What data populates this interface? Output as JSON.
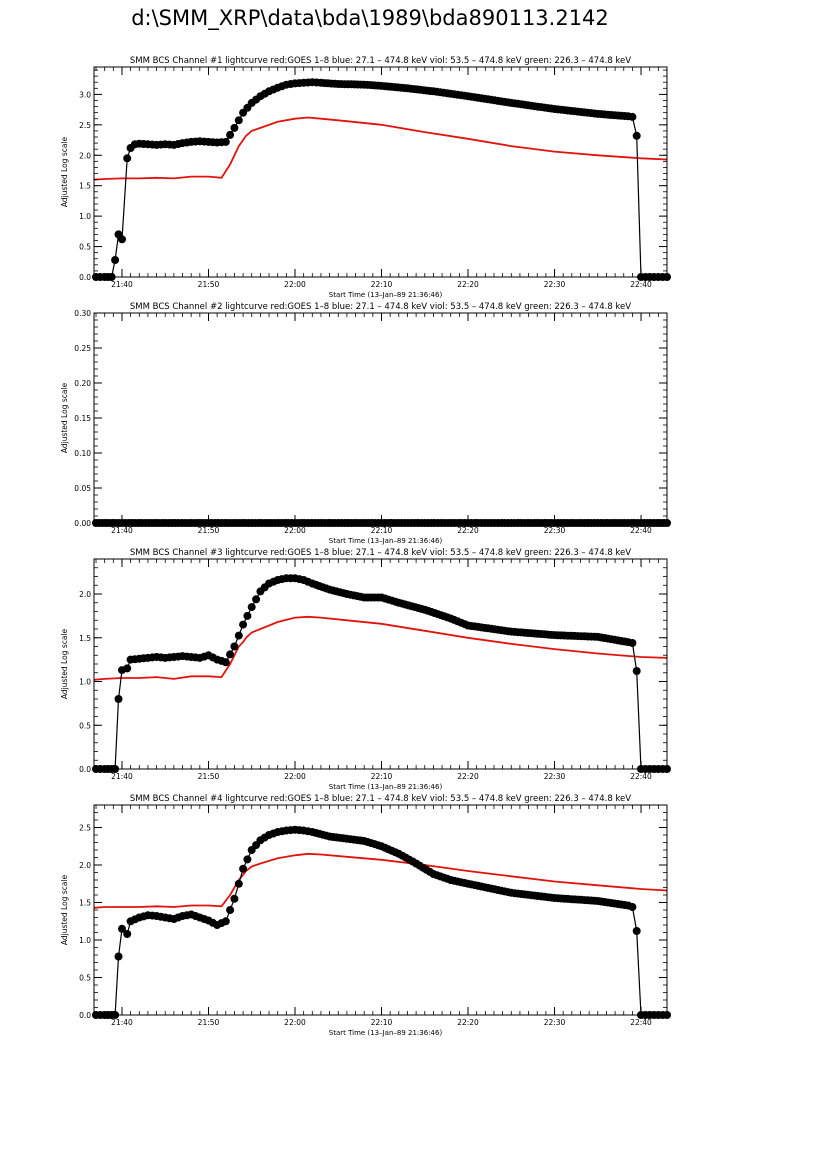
{
  "page": {
    "title": "d:\\SMM_XRP\\data\\bda\\1989\\bda890113.2142"
  },
  "colors": {
    "goes": "#e0140c",
    "bcs": "#000000",
    "axes": "#000000"
  },
  "chart_data": [
    {
      "type": "line",
      "title": "SMM BCS Channel #1 lightcurve  red:GOES 1–8  blue: 27.1 – 474.8 keV  viol: 53.5 – 474.8 keV  green: 226.3 – 474.8 keV",
      "xlabel": "Start Time (13–Jan–89 21:36:46)",
      "ylabel": "Adjusted Log scale",
      "xlim": [
        "21:36:46",
        "22:43:00"
      ],
      "ylim": [
        0,
        3.45
      ],
      "x_ticks": [
        "21:40",
        "21:50",
        "22:00",
        "22:10",
        "22:20",
        "22:30",
        "22:40"
      ],
      "y_ticks": [
        "0.0",
        "0.5",
        "1.0",
        "1.5",
        "2.0",
        "2.5",
        "3.0"
      ],
      "y_tick_values": [
        0,
        0.5,
        1.0,
        1.5,
        2.0,
        2.5,
        3.0
      ],
      "series": [
        {
          "kind": "bcs",
          "x": [
            "21:37:00",
            "21:38:00",
            "21:38:48",
            "21:39:12",
            "21:39:36",
            "21:40:00",
            "21:40:36",
            "21:41:00",
            "21:41:30",
            "21:42:00",
            "21:43:00",
            "21:44:00",
            "21:45:00",
            "21:46:00",
            "21:47:00",
            "21:48:00",
            "21:49:00",
            "21:50:00",
            "21:51:00",
            "21:52:00",
            "21:53:00",
            "21:54:00",
            "21:55:00",
            "21:56:00",
            "21:57:00",
            "21:58:00",
            "21:59:00",
            "22:00:00",
            "22:01:00",
            "22:02:00",
            "22:03:00",
            "22:05:00",
            "22:08:00",
            "22:10:00",
            "22:13:00",
            "22:16:00",
            "22:20:00",
            "22:25:00",
            "22:30:00",
            "22:35:00",
            "22:38:30",
            "22:39:00",
            "22:39:30",
            "22:40:00",
            "22:41:00",
            "22:42:00",
            "22:43:00"
          ],
          "y": [
            0.0,
            0.0,
            0.0,
            0.28,
            0.7,
            0.62,
            1.95,
            2.12,
            2.18,
            2.19,
            2.18,
            2.17,
            2.18,
            2.17,
            2.2,
            2.22,
            2.23,
            2.22,
            2.21,
            2.22,
            2.45,
            2.7,
            2.86,
            2.97,
            3.05,
            3.11,
            3.16,
            3.18,
            3.19,
            3.2,
            3.19,
            3.17,
            3.16,
            3.14,
            3.1,
            3.05,
            2.97,
            2.86,
            2.76,
            2.68,
            2.64,
            2.63,
            2.32,
            0.0,
            0.0,
            0.0,
            0.0
          ]
        },
        {
          "kind": "goes",
          "x": [
            "21:36:46",
            "21:38:00",
            "21:40:00",
            "21:42:00",
            "21:44:00",
            "21:46:00",
            "21:48:00",
            "21:50:00",
            "21:51:30",
            "21:52:30",
            "21:53:30",
            "21:54:00",
            "21:54:20",
            "21:55:00",
            "21:56:00",
            "21:58:00",
            "22:00:00",
            "22:01:30",
            "22:03:00",
            "22:06:00",
            "22:10:00",
            "22:15:00",
            "22:20:00",
            "22:25:00",
            "22:30:00",
            "22:35:00",
            "22:40:00",
            "22:43:00"
          ],
          "y": [
            1.6,
            1.61,
            1.62,
            1.62,
            1.63,
            1.62,
            1.65,
            1.65,
            1.63,
            1.85,
            2.15,
            2.25,
            2.32,
            2.4,
            2.45,
            2.55,
            2.6,
            2.62,
            2.6,
            2.56,
            2.5,
            2.38,
            2.27,
            2.15,
            2.06,
            2.0,
            1.95,
            1.93
          ]
        }
      ]
    },
    {
      "type": "line",
      "title": "SMM BCS Channel #2 lightcurve  red:GOES 1–8  blue: 27.1 – 474.8 keV  viol: 53.5 – 474.8 keV  green: 226.3 – 474.8 keV",
      "xlabel": "Start Time (13–Jan–89 21:36:46)",
      "ylabel": "Adjusted Log scale",
      "xlim": [
        "21:36:46",
        "22:43:00"
      ],
      "ylim": [
        0,
        0.3
      ],
      "x_ticks": [
        "21:40",
        "21:50",
        "22:00",
        "22:10",
        "22:20",
        "22:30",
        "22:40"
      ],
      "y_ticks": [
        "0.00",
        "0.05",
        "0.10",
        "0.15",
        "0.20",
        "0.25",
        "0.30"
      ],
      "y_tick_values": [
        0,
        0.05,
        0.1,
        0.15,
        0.2,
        0.25,
        0.3
      ],
      "series": [
        {
          "kind": "bcs",
          "x": [
            "21:37:00",
            "21:40:00",
            "21:45:00",
            "21:50:00",
            "21:55:00",
            "22:00:00",
            "22:05:00",
            "22:10:00",
            "22:15:00",
            "22:20:00",
            "22:25:00",
            "22:30:00",
            "22:35:00",
            "22:40:00",
            "22:43:00"
          ],
          "y": [
            0,
            0,
            0,
            0,
            0,
            0,
            0,
            0,
            0,
            0,
            0,
            0,
            0,
            0,
            0
          ]
        }
      ]
    },
    {
      "type": "line",
      "title": "SMM BCS Channel #3 lightcurve  red:GOES 1–8  blue: 27.1 – 474.8 keV  viol: 53.5 – 474.8 keV  green: 226.3 – 474.8 keV",
      "xlabel": "Start Time (13–Jan–89 21:36:46)",
      "ylabel": "Adjusted Log scale",
      "xlim": [
        "21:36:46",
        "22:43:00"
      ],
      "ylim": [
        0,
        2.4
      ],
      "x_ticks": [
        "21:40",
        "21:50",
        "22:00",
        "22:10",
        "22:20",
        "22:30",
        "22:40"
      ],
      "y_ticks": [
        "0.0",
        "0.5",
        "1.0",
        "1.5",
        "2.0"
      ],
      "y_tick_values": [
        0,
        0.5,
        1.0,
        1.5,
        2.0
      ],
      "series": [
        {
          "kind": "bcs",
          "x": [
            "21:37:00",
            "21:38:00",
            "21:38:48",
            "21:39:12",
            "21:39:36",
            "21:40:00",
            "21:40:36",
            "21:41:00",
            "21:42:00",
            "21:43:00",
            "21:44:00",
            "21:45:00",
            "21:46:00",
            "21:47:00",
            "21:48:00",
            "21:49:00",
            "21:50:00",
            "21:51:00",
            "21:52:00",
            "21:53:00",
            "21:54:00",
            "21:55:00",
            "21:56:00",
            "21:57:00",
            "21:58:00",
            "21:59:00",
            "22:00:00",
            "22:01:00",
            "22:02:00",
            "22:04:00",
            "22:06:00",
            "22:08:00",
            "22:10:00",
            "22:12:00",
            "22:15:00",
            "22:18:00",
            "22:20:00",
            "22:25:00",
            "22:30:00",
            "22:35:00",
            "22:38:30",
            "22:39:00",
            "22:39:30",
            "22:40:00",
            "22:41:00",
            "22:42:00",
            "22:43:00"
          ],
          "y": [
            0.0,
            0.0,
            0.0,
            0.0,
            0.8,
            1.13,
            1.15,
            1.25,
            1.26,
            1.27,
            1.28,
            1.27,
            1.28,
            1.29,
            1.28,
            1.27,
            1.3,
            1.25,
            1.22,
            1.4,
            1.65,
            1.85,
            2.03,
            2.12,
            2.16,
            2.18,
            2.18,
            2.16,
            2.12,
            2.05,
            2.0,
            1.96,
            1.96,
            1.9,
            1.82,
            1.72,
            1.64,
            1.57,
            1.53,
            1.51,
            1.45,
            1.44,
            1.12,
            0.0,
            0.0,
            0.0,
            0.0
          ]
        },
        {
          "kind": "goes",
          "x": [
            "21:36:46",
            "21:38:00",
            "21:40:00",
            "21:42:00",
            "21:44:00",
            "21:46:00",
            "21:48:00",
            "21:50:00",
            "21:51:30",
            "21:52:30",
            "21:53:30",
            "21:54:00",
            "21:54:20",
            "21:55:00",
            "21:56:00",
            "21:58:00",
            "22:00:00",
            "22:01:30",
            "22:03:00",
            "22:06:00",
            "22:10:00",
            "22:15:00",
            "22:20:00",
            "22:25:00",
            "22:30:00",
            "22:35:00",
            "22:40:00",
            "22:43:00"
          ],
          "y": [
            1.02,
            1.03,
            1.04,
            1.04,
            1.05,
            1.03,
            1.06,
            1.06,
            1.05,
            1.2,
            1.4,
            1.45,
            1.5,
            1.56,
            1.6,
            1.68,
            1.73,
            1.74,
            1.73,
            1.7,
            1.66,
            1.58,
            1.5,
            1.43,
            1.37,
            1.32,
            1.28,
            1.27
          ]
        }
      ]
    },
    {
      "type": "line",
      "title": "SMM BCS Channel #4 lightcurve  red:GOES 1–8  blue: 27.1 – 474.8 keV  viol: 53.5 – 474.8 keV  green: 226.3 – 474.8 keV",
      "xlabel": "Start Time (13–Jan–89 21:36:46)",
      "ylabel": "Adjusted Log scale",
      "xlim": [
        "21:36:46",
        "22:43:00"
      ],
      "ylim": [
        0,
        2.8
      ],
      "x_ticks": [
        "21:40",
        "21:50",
        "22:00",
        "22:10",
        "22:20",
        "22:30",
        "22:40"
      ],
      "y_ticks": [
        "0.0",
        "0.5",
        "1.0",
        "1.5",
        "2.0",
        "2.5"
      ],
      "y_tick_values": [
        0,
        0.5,
        1.0,
        1.5,
        2.0,
        2.5
      ],
      "series": [
        {
          "kind": "bcs",
          "x": [
            "21:37:00",
            "21:38:00",
            "21:38:48",
            "21:39:12",
            "21:39:36",
            "21:40:00",
            "21:40:36",
            "21:41:00",
            "21:42:00",
            "21:43:00",
            "21:44:00",
            "21:45:00",
            "21:46:00",
            "21:47:00",
            "21:48:00",
            "21:49:00",
            "21:50:00",
            "21:51:00",
            "21:52:00",
            "21:53:00",
            "21:54:00",
            "21:55:00",
            "21:56:00",
            "21:57:00",
            "21:58:00",
            "21:59:00",
            "22:00:00",
            "22:01:00",
            "22:02:00",
            "22:04:00",
            "22:06:00",
            "22:08:00",
            "22:10:00",
            "22:12:00",
            "22:14:00",
            "22:16:00",
            "22:18:00",
            "22:20:00",
            "22:25:00",
            "22:30:00",
            "22:35:00",
            "22:38:30",
            "22:39:00",
            "22:39:30",
            "22:40:00",
            "22:41:00",
            "22:42:00",
            "22:43:00"
          ],
          "y": [
            0.0,
            0.0,
            0.0,
            0.0,
            0.78,
            1.15,
            1.08,
            1.25,
            1.3,
            1.33,
            1.32,
            1.3,
            1.28,
            1.32,
            1.34,
            1.3,
            1.26,
            1.2,
            1.25,
            1.55,
            1.95,
            2.2,
            2.33,
            2.4,
            2.44,
            2.46,
            2.47,
            2.46,
            2.44,
            2.38,
            2.35,
            2.32,
            2.25,
            2.15,
            2.02,
            1.88,
            1.8,
            1.75,
            1.63,
            1.56,
            1.52,
            1.46,
            1.44,
            1.12,
            0.0,
            0.0,
            0.0,
            0.0
          ]
        },
        {
          "kind": "goes",
          "x": [
            "21:36:46",
            "21:38:00",
            "21:40:00",
            "21:42:00",
            "21:44:00",
            "21:46:00",
            "21:48:00",
            "21:50:00",
            "21:51:30",
            "21:52:30",
            "21:53:30",
            "21:54:00",
            "21:54:20",
            "21:55:00",
            "21:56:00",
            "21:58:00",
            "22:00:00",
            "22:01:30",
            "22:03:00",
            "22:06:00",
            "22:10:00",
            "22:15:00",
            "22:20:00",
            "22:25:00",
            "22:30:00",
            "22:35:00",
            "22:40:00",
            "22:43:00"
          ],
          "y": [
            1.43,
            1.44,
            1.44,
            1.44,
            1.45,
            1.44,
            1.46,
            1.46,
            1.45,
            1.6,
            1.8,
            1.87,
            1.92,
            1.98,
            2.02,
            2.09,
            2.13,
            2.15,
            2.14,
            2.11,
            2.07,
            2.0,
            1.92,
            1.85,
            1.78,
            1.73,
            1.68,
            1.66
          ]
        }
      ]
    }
  ]
}
